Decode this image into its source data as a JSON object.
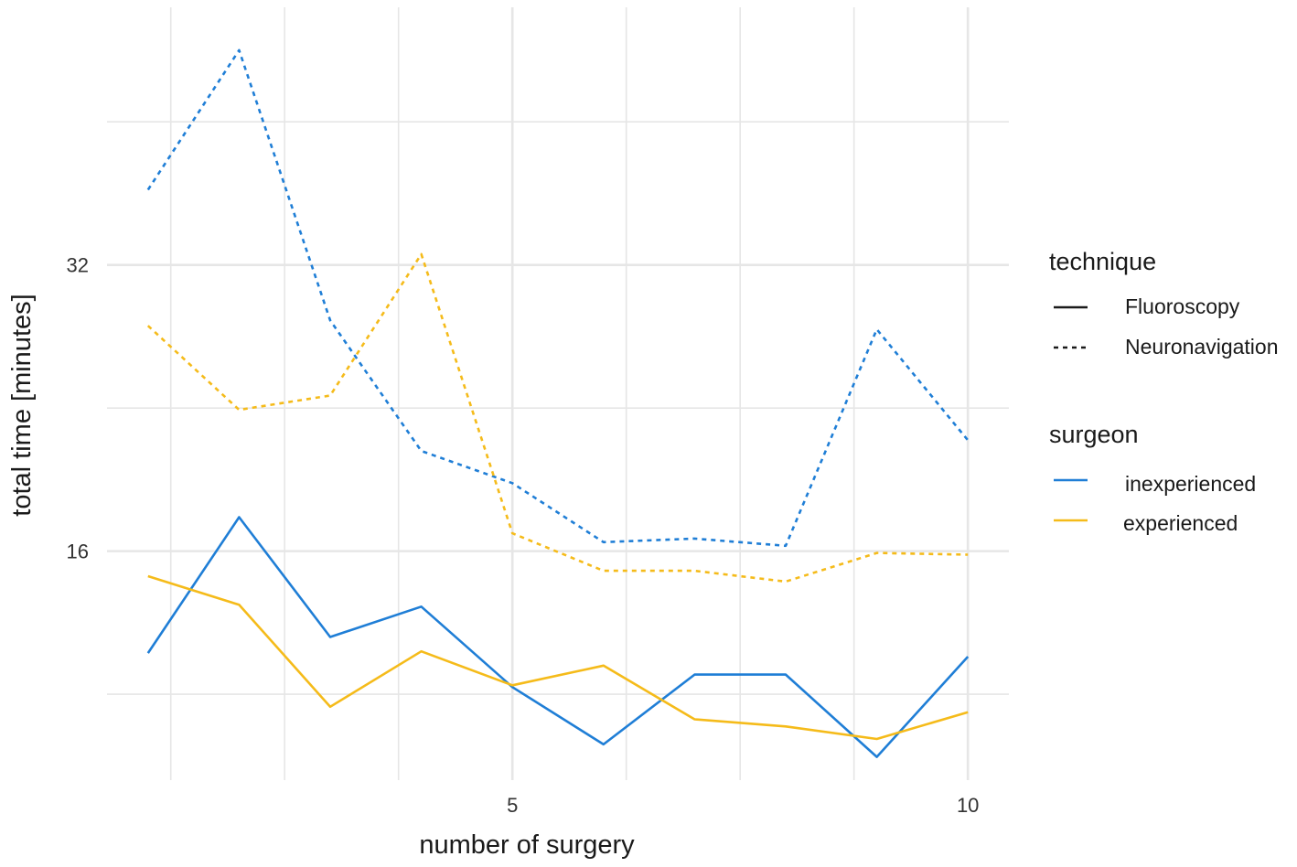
{
  "chart_data": {
    "type": "line",
    "title": "",
    "xlabel": "number of surgery",
    "ylabel": "total time [minutes]",
    "x": [
      1,
      2,
      3,
      4,
      5,
      6,
      7,
      8,
      9,
      10
    ],
    "xlim": [
      0.55,
      10.45
    ],
    "ylim": [
      3.2,
      46.4
    ],
    "x_ticks": [
      {
        "value": 5,
        "label": "5"
      },
      {
        "value": 10,
        "label": "10"
      }
    ],
    "x_minor_gridlines": [
      1.25,
      2.5,
      3.75,
      6.25,
      7.5,
      8.75
    ],
    "y_ticks": [
      {
        "value": 16,
        "label": "16"
      },
      {
        "value": 32,
        "label": "32"
      }
    ],
    "y_minor_gridlines": [
      8,
      24,
      40
    ],
    "colors": {
      "inexperienced": "#1f7ed6",
      "experienced": "#f5bb1a",
      "grid": "#e6e6e6"
    },
    "series": [
      {
        "name": "inexperienced - Neuronavigation",
        "surgeon": "inexperienced",
        "technique": "Neuronavigation",
        "values": [
          36.2,
          44.0,
          28.9,
          21.6,
          19.8,
          16.5,
          16.7,
          16.3,
          28.4,
          22.2
        ]
      },
      {
        "name": "experienced - Neuronavigation",
        "surgeon": "experienced",
        "technique": "Neuronavigation",
        "values": [
          28.6,
          23.9,
          24.7,
          32.6,
          17.0,
          14.9,
          14.9,
          14.3,
          15.9,
          15.8
        ]
      },
      {
        "name": "inexperienced - Fluoroscopy",
        "surgeon": "inexperienced",
        "technique": "Fluoroscopy",
        "values": [
          10.3,
          17.9,
          11.2,
          12.9,
          8.4,
          5.2,
          9.1,
          9.1,
          4.5,
          10.1
        ]
      },
      {
        "name": "experienced - Fluoroscopy",
        "surgeon": "experienced",
        "technique": "Fluoroscopy",
        "values": [
          14.6,
          13.0,
          7.3,
          10.4,
          8.5,
          9.6,
          6.6,
          6.2,
          5.5,
          7.0
        ]
      }
    ],
    "legend": {
      "technique": {
        "title": "technique",
        "items": [
          {
            "label": "Fluoroscopy",
            "style": "solid"
          },
          {
            "label": "Neuronavigation",
            "style": "dashed"
          }
        ]
      },
      "surgeon": {
        "title": "surgeon",
        "items": [
          {
            "label": "inexperienced",
            "color": "#1f7ed6"
          },
          {
            "label": "experienced",
            "color": "#f5bb1a"
          }
        ]
      }
    }
  }
}
